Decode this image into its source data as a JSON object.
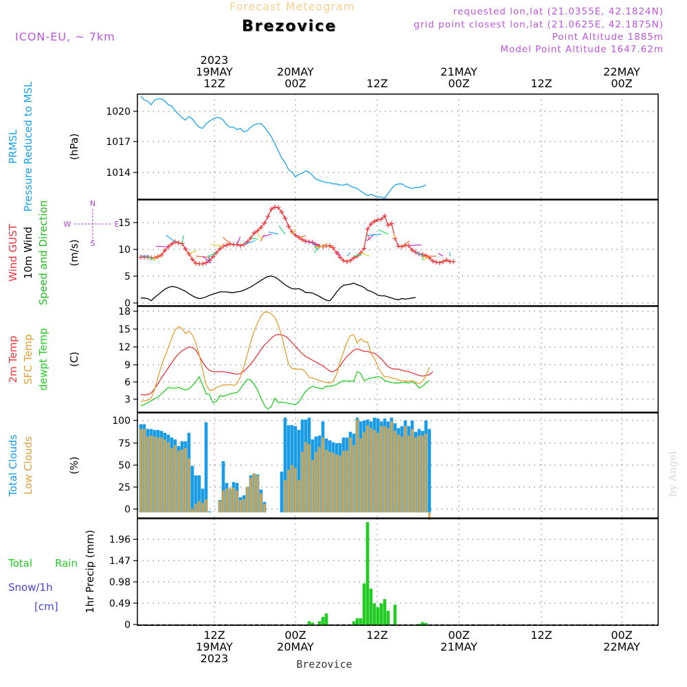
{
  "header": {
    "super_title": "Forecast Meteogram",
    "model": "ICON-EU, ~ 7km",
    "location": "Brezovice",
    "requested": "requested lon,lat (21.0355E, 42.1824N)",
    "grid_point": "grid point closest lon,lat (21.0625E, 42.1875N)",
    "point_alt": "Point Altitude 1885m",
    "model_alt": "Model Point Altitude 1647.62m",
    "credit": "by Angel",
    "bottom_label": "Brezovice"
  },
  "colors": {
    "pressure": "#1aa0e8",
    "gust": "#e8343a",
    "wind": "#000000",
    "direction": "#22bb22",
    "temp": "#e8343a",
    "sfc": "#e0a030",
    "dewpt": "#22cc22",
    "total_clouds": "#1a9be6",
    "low_clouds": "#d9a441",
    "rain": "#22cc22",
    "snow": "#4444dd",
    "compass": "#aa44cc",
    "header_model": "#bb55dd",
    "header_title": "#f5d090"
  },
  "chart_data": [
    {
      "type": "line",
      "panel": "pressure",
      "ylabel_left": [
        "PRMSL",
        "Pressure Reduced to MSL"
      ],
      "unit": "(hPa)",
      "yticks": [
        1014,
        1017,
        1020
      ],
      "ylim": [
        1012.3,
        1021.2
      ],
      "x_start": 0,
      "series": [
        {
          "values": [
            1021.0,
            1020.7,
            1020.6,
            1020.3,
            1020.7,
            1020.8,
            1020.8,
            1020.6,
            1020.3,
            1020.2,
            1019.8,
            1019.5,
            1019.2,
            1019.0,
            1019.3,
            1019.1,
            1018.7,
            1018.4,
            1018.3,
            1018.7,
            1018.9,
            1019.1,
            1019.2,
            1019.2,
            1019.0,
            1018.6,
            1018.4,
            1018.4,
            1018.2,
            1018.3,
            1018.0,
            1018.1,
            1018.4,
            1018.6,
            1018.7,
            1018.7,
            1018.4,
            1018.0,
            1017.6,
            1017.0,
            1016.4,
            1015.8,
            1015.4,
            1014.8,
            1014.6,
            1014.2,
            1014.4,
            1014.5,
            1014.7,
            1014.6,
            1014.3,
            1014.0,
            1013.9,
            1013.8,
            1013.7,
            1013.7,
            1013.6,
            1013.6,
            1013.5,
            1013.5,
            1013.6,
            1013.4,
            1013.3,
            1013.2,
            1013.0,
            1012.8,
            1012.6,
            1012.7,
            1012.6,
            1012.5,
            1012.5,
            1012.4,
            1012.8,
            1013.2,
            1013.5,
            1013.6,
            1013.6,
            1013.4,
            1013.3,
            1013.2,
            1013.3,
            1013.3,
            1013.4,
            1013.5
          ]
        }
      ]
    },
    {
      "type": "line",
      "panel": "wind",
      "ylabel_left": [
        "Wind GUST",
        "10m Wind",
        "Speed and Direction"
      ],
      "unit": "(m/s)",
      "compass": {
        "n": "N",
        "s": "S",
        "w": "W",
        "e": "E"
      },
      "yticks": [
        0,
        5,
        10,
        15
      ],
      "ylim": [
        0,
        19.2
      ],
      "series": [
        {
          "key": "gust",
          "x_start": 0,
          "values": [
            8.8,
            8.8,
            8.8,
            8.7,
            8.7,
            8.9,
            9.2,
            10.0,
            10.7,
            11.2,
            11.6,
            11.4,
            11.3,
            10.3,
            9.4,
            8.4,
            7.7,
            7.6,
            7.6,
            7.8,
            8.2,
            8.9,
            9.6,
            10.3,
            10.8,
            11.0,
            11.2,
            11.1,
            11.1,
            10.9,
            11.1,
            11.6,
            12.3,
            13.2,
            13.6,
            14.2,
            15.0,
            16.2,
            17.5,
            17.9,
            17.8,
            17.0,
            15.9,
            14.4,
            13.4,
            12.8,
            12.4,
            12.0,
            11.7,
            11.6,
            11.5,
            11.1,
            10.8,
            10.7,
            10.9,
            10.9,
            10.5,
            9.6,
            8.8,
            8.2,
            8.0,
            8.2,
            8.7,
            9.0,
            9.6,
            10.4,
            13.9,
            14.8,
            15.3,
            15.6,
            15.7,
            16.3,
            14.6,
            14.9,
            12.2,
            10.8,
            10.7,
            11.0,
            10.9,
            10.1,
            9.7,
            9.4,
            9.3,
            9.1,
            8.7,
            8.1,
            7.9,
            7.8,
            8.0,
            8.3,
            8.0,
            8.0
          ]
        },
        {
          "key": "wind",
          "x_start": 0,
          "values": [
            1.4,
            1.4,
            1.3,
            0.9,
            1.5,
            2.0,
            2.5,
            3.0,
            3.3,
            3.5,
            3.4,
            3.2,
            2.9,
            2.6,
            2.2,
            1.8,
            1.5,
            1.3,
            1.4,
            1.6,
            1.9,
            2.1,
            2.3,
            2.5,
            2.5,
            2.5,
            2.4,
            2.4,
            2.5,
            2.6,
            2.8,
            3.1,
            3.4,
            3.8,
            4.2,
            4.6,
            5.0,
            5.3,
            5.4,
            5.2,
            4.8,
            4.3,
            3.8,
            3.4,
            3.1,
            3.0,
            3.1,
            2.8,
            2.4,
            2.4,
            2.3,
            2.0,
            1.7,
            1.3,
            1.0,
            0.9,
            1.6,
            2.5,
            3.2,
            3.7,
            3.8,
            3.9,
            4.1,
            3.8,
            3.6,
            3.3,
            2.8,
            2.6,
            2.3,
            1.9,
            1.8,
            1.8,
            1.6,
            1.4,
            1.2,
            1.1,
            1.3,
            1.2,
            1.3,
            1.4,
            1.5
          ]
        }
      ]
    },
    {
      "type": "line",
      "panel": "temperature",
      "ylabel_left": [
        "2m Temp",
        "SFC Temp",
        "dewpt Temp"
      ],
      "unit": "(C)",
      "yticks": [
        3,
        6,
        9,
        12,
        15,
        18
      ],
      "ylim": [
        1.8,
        18.5
      ],
      "x_start": 0,
      "series": [
        {
          "key": "t2m",
          "values": [
            4.6,
            4.5,
            4.6,
            4.8,
            5.5,
            6.3,
            7.2,
            8.0,
            8.8,
            9.6,
            10.4,
            11.0,
            11.5,
            11.8,
            12.1,
            12.0,
            11.6,
            10.7,
            9.7,
            8.9,
            8.4,
            8.2,
            8.2,
            8.2,
            8.2,
            8.1,
            8.0,
            7.9,
            7.8,
            7.9,
            8.3,
            8.8,
            9.4,
            10.1,
            10.9,
            11.7,
            12.4,
            12.9,
            13.5,
            13.9,
            14.1,
            14.0,
            13.8,
            13.4,
            12.8,
            12.2,
            11.6,
            11.0,
            10.6,
            10.3,
            10.0,
            9.7,
            9.4,
            9.1,
            8.7,
            8.3,
            8.2,
            8.5,
            9.1,
            9.9,
            10.6,
            11.1,
            11.6,
            11.8,
            11.6,
            11.4,
            11.4,
            11.2,
            11.1,
            10.7,
            10.2,
            9.6,
            9.0,
            8.7,
            8.6,
            8.6,
            8.4,
            8.3,
            8.2,
            8.0,
            7.8,
            7.6,
            7.5,
            7.6,
            7.7,
            8.2
          ]
        },
        {
          "key": "sfc",
          "values": [
            3.5,
            3.6,
            3.7,
            4.0,
            5.4,
            7.3,
            9.2,
            10.6,
            12.0,
            13.5,
            14.8,
            15.3,
            15.0,
            14.2,
            14.6,
            14.0,
            12.8,
            10.8,
            8.5,
            6.2,
            5.2,
            5.3,
            5.7,
            5.9,
            6.1,
            6.1,
            6.2,
            6.0,
            6.3,
            7.4,
            9.0,
            10.9,
            12.9,
            14.6,
            15.9,
            17.0,
            17.6,
            17.6,
            17.3,
            16.8,
            15.6,
            13.9,
            11.6,
            9.4,
            8.7,
            8.6,
            8.6,
            8.6,
            8.1,
            7.3,
            7.2,
            7.0,
            6.8,
            6.6,
            6.5,
            6.4,
            6.7,
            7.8,
            9.7,
            11.3,
            12.8,
            13.9,
            14.0,
            12.7,
            13.4,
            12.9,
            12.9,
            11.1,
            10.3,
            9.0,
            8.0,
            7.4,
            7.4,
            7.2,
            7.1,
            6.9,
            6.8,
            6.7,
            6.7,
            6.8,
            6.5,
            6.3,
            6.7,
            7.5,
            8.9
          ]
        },
        {
          "key": "dewpt",
          "values": [
            2.8,
            3.0,
            3.3,
            3.6,
            3.9,
            4.2,
            4.7,
            5.2,
            5.7,
            5.6,
            5.6,
            5.7,
            5.5,
            5.3,
            5.5,
            6.0,
            6.6,
            7.4,
            6.1,
            4.7,
            4.6,
            3.3,
            3.5,
            4.4,
            4.3,
            4.5,
            4.7,
            4.8,
            4.9,
            5.5,
            6.3,
            7.0,
            6.9,
            6.2,
            5.3,
            4.0,
            2.9,
            2.3,
            2.7,
            4.0,
            3.3,
            3.4,
            3.3,
            3.2,
            3.1,
            3.0,
            3.4,
            4.3,
            5.1,
            5.6,
            5.9,
            5.7,
            5.6,
            5.5,
            5.9,
            5.9,
            6.0,
            6.2,
            6.5,
            6.8,
            6.7,
            6.7,
            6.7,
            8.2,
            7.9,
            6.8,
            7.0,
            7.2,
            7.3,
            7.4,
            7.3,
            6.8,
            6.6,
            6.5,
            6.4,
            6.4,
            6.5,
            6.5,
            6.4,
            6.6,
            6.3,
            5.6,
            5.9,
            6.4,
            6.8
          ]
        }
      ]
    },
    {
      "type": "bar",
      "panel": "clouds",
      "ylabel_left": [
        "Total Clouds",
        "Low Clouds"
      ],
      "unit": "(%)",
      "yticks": [
        0,
        25,
        50,
        75,
        100
      ],
      "ylim": [
        -6,
        105
      ],
      "x_start": 0,
      "series": [
        {
          "key": "total",
          "values": [
            93,
            93,
            88,
            88,
            87,
            87,
            86,
            84,
            82,
            79,
            77,
            70,
            75,
            75,
            84,
            49,
            39,
            39,
            25,
            95,
            1,
            0,
            0,
            13,
            54,
            31,
            24,
            32,
            31,
            16,
            18,
            27,
            39,
            41,
            40,
            24,
            11,
            0,
            0,
            0,
            0,
            43,
            100,
            92,
            92,
            91,
            87,
            98,
            98,
            100,
            77,
            80,
            81,
            96,
            78,
            76,
            74,
            73,
            73,
            79,
            79,
            85,
            83,
            100,
            96,
            97,
            98,
            96,
            100,
            99,
            96,
            99,
            96,
            100,
            94,
            89,
            91,
            97,
            91,
            97,
            85,
            88,
            86,
            97,
            88
          ]
        },
        {
          "key": "low",
          "values": [
            88,
            88,
            80,
            81,
            80,
            79,
            79,
            77,
            74,
            68,
            71,
            65,
            66,
            68,
            57,
            4,
            9,
            12,
            10,
            14,
            0,
            0,
            0,
            12,
            23,
            25,
            26,
            26,
            23,
            13,
            14,
            27,
            37,
            41,
            39,
            20,
            9,
            0,
            0,
            0,
            0,
            0,
            34,
            45,
            50,
            47,
            34,
            64,
            74,
            72,
            55,
            64,
            69,
            79,
            66,
            64,
            63,
            61,
            60,
            65,
            65,
            79,
            71,
            98,
            78,
            85,
            92,
            89,
            87,
            84,
            91,
            91,
            89,
            96,
            86,
            82,
            80,
            91,
            81,
            88,
            79,
            81,
            81,
            83,
            -8
          ]
        }
      ]
    },
    {
      "type": "bar",
      "panel": "precip",
      "ylabel_left": [
        "Total",
        "Rain",
        "Snow/1h",
        "[cm]"
      ],
      "ylabel_inner": "1hr Precip (mm)",
      "yticks": [
        "0",
        "0.49",
        "0.98",
        "1.47",
        "1.96"
      ],
      "ylim": [
        0,
        2.45
      ],
      "x_start": 0,
      "series": [
        {
          "key": "rain",
          "values": [
            0,
            0,
            0,
            0,
            0,
            0,
            0,
            0,
            0,
            0,
            0,
            0,
            0,
            0,
            0,
            0,
            0,
            0,
            0,
            0,
            0,
            0,
            0,
            0,
            0,
            0,
            0,
            0,
            0,
            0,
            0,
            0,
            0,
            0,
            0,
            0,
            0,
            0,
            0,
            0,
            0,
            0,
            0,
            0,
            0,
            0,
            0,
            0,
            0,
            0.09,
            0.06,
            0,
            0.09,
            0.19,
            0.27,
            0,
            0,
            0,
            0,
            0,
            0,
            0,
            0.09,
            0.16,
            0.16,
            0.96,
            2.37,
            0.84,
            0.5,
            0.41,
            0.5,
            0.6,
            0.33,
            0,
            0.47,
            0,
            0,
            0,
            0,
            0,
            0,
            0.03,
            0.07,
            0.05,
            0,
            0
          ]
        }
      ]
    }
  ],
  "time_axis": {
    "top": [
      {
        "lines": [
          "2023",
          "19MAY",
          "12Z"
        ]
      },
      {
        "lines": [
          "20MAY",
          "00Z"
        ]
      },
      {
        "lines": [
          "12Z"
        ]
      },
      {
        "lines": [
          "21MAY",
          "00Z"
        ]
      },
      {
        "lines": [
          "12Z"
        ]
      },
      {
        "lines": [
          "22MAY",
          "00Z"
        ]
      }
    ],
    "bottom": [
      {
        "lines": [
          "12Z",
          "19MAY",
          "2023"
        ]
      },
      {
        "lines": [
          "00Z",
          "20MAY"
        ]
      },
      {
        "lines": [
          "12Z"
        ]
      },
      {
        "lines": [
          "00Z",
          "21MAY"
        ]
      },
      {
        "lines": [
          "12Z"
        ]
      },
      {
        "lines": [
          "00Z",
          "22MAY"
        ]
      }
    ]
  }
}
